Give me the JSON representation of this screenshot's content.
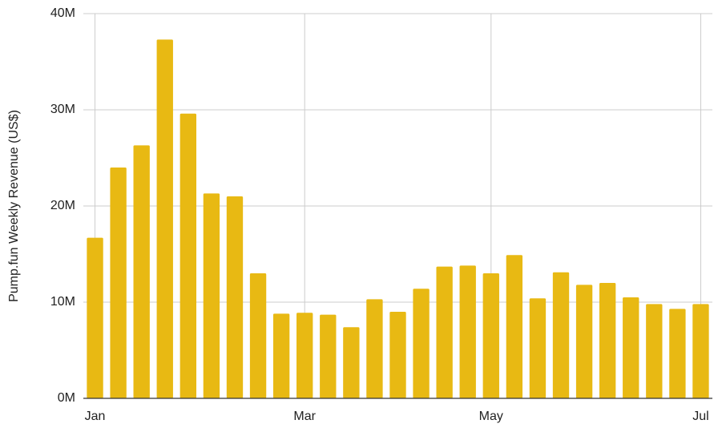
{
  "chart_data": {
    "type": "bar",
    "y_label": "Pump.fun Weekly Revenue (US$)",
    "categories": [
      "Jan",
      null,
      null,
      null,
      null,
      null,
      null,
      null,
      null,
      "Mar",
      null,
      null,
      null,
      null,
      null,
      null,
      null,
      "May",
      null,
      null,
      null,
      null,
      null,
      null,
      null,
      null,
      "Jul"
    ],
    "values": [
      16.7,
      24.0,
      26.3,
      37.3,
      29.6,
      21.3,
      21.0,
      13.0,
      8.8,
      8.9,
      8.7,
      7.4,
      10.3,
      9.0,
      11.4,
      13.7,
      13.8,
      13.0,
      14.9,
      10.4,
      13.1,
      11.8,
      12.0,
      10.5,
      9.8,
      9.3,
      9.8
    ],
    "color": "#e8b913",
    "ylim": [
      0,
      40
    ],
    "yticks": [
      {
        "value": 0,
        "label": "0M"
      },
      {
        "value": 10,
        "label": "10M"
      },
      {
        "value": 20,
        "label": "20M"
      },
      {
        "value": 30,
        "label": "30M"
      },
      {
        "value": 40,
        "label": "40M"
      }
    ],
    "grid": true
  }
}
